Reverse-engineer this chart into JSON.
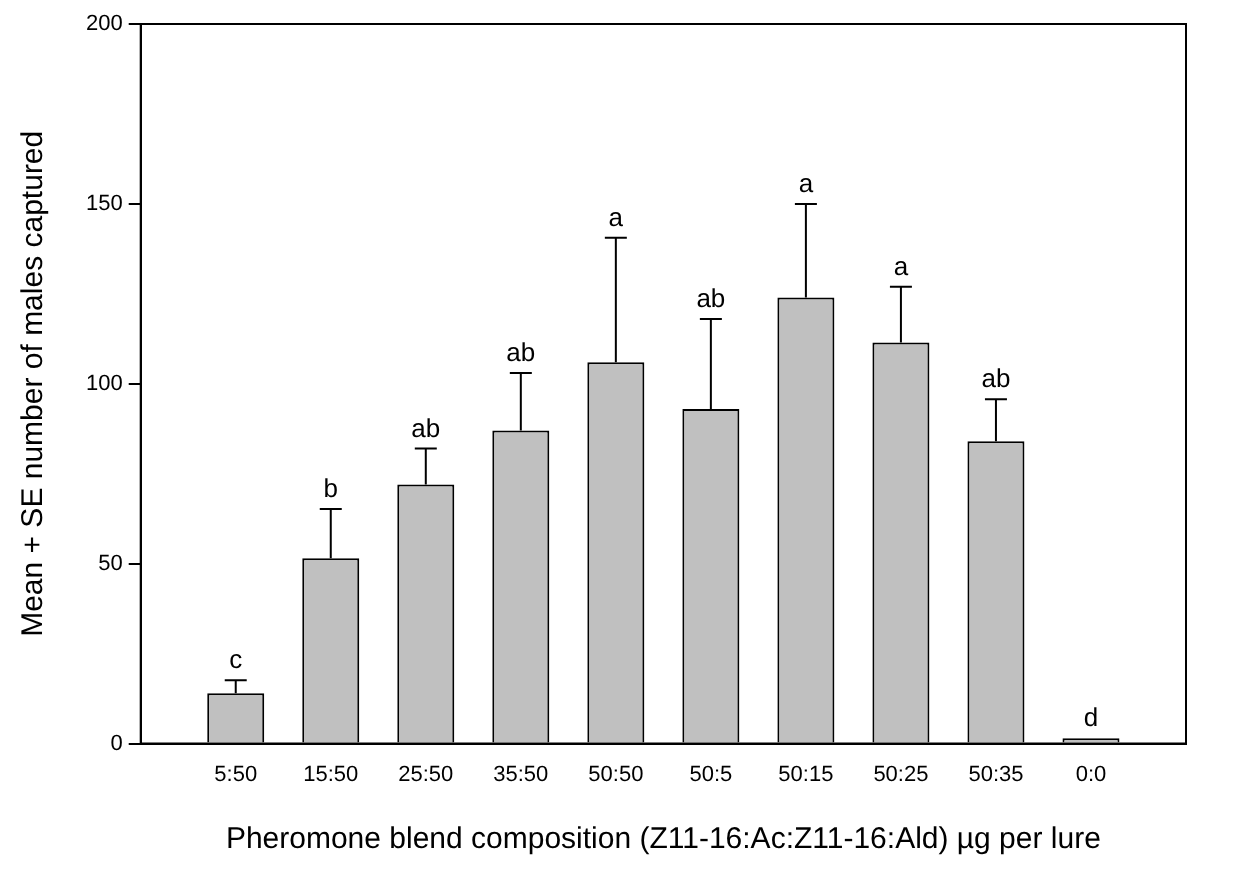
{
  "chart_data": {
    "type": "bar",
    "xlabel": "Pheromone blend composition (Z11-16:Ac:Z11-16:Ald) µg per lure",
    "ylabel": "Mean + SE number of males captured",
    "categories": [
      "5:50",
      "15:50",
      "25:50",
      "35:50",
      "50:50",
      "50:5",
      "50:15",
      "50:25",
      "50:35",
      "0:0"
    ],
    "values": [
      14,
      51.5,
      72,
      87,
      106,
      93,
      124,
      111.5,
      84,
      1.5
    ],
    "errors": [
      [
        14,
        17.6
      ],
      [
        51.5,
        65.2
      ],
      [
        72,
        82
      ],
      [
        87,
        103
      ],
      [
        106,
        140.6
      ],
      [
        93,
        118
      ],
      [
        124,
        150
      ],
      [
        111.5,
        127
      ],
      [
        84,
        95.7
      ],
      null
    ],
    "color": "#c0c0c0",
    "ylim": [
      0,
      200
    ],
    "yticks": [
      0,
      50,
      100,
      150,
      200
    ],
    "grid": false,
    "legend": false,
    "annotations": [
      {
        "text": "c",
        "x": "5:50",
        "y": 17.6
      },
      {
        "text": "b",
        "x": "15:50",
        "y": 65.2
      },
      {
        "text": "ab",
        "x": "25:50",
        "y": 82
      },
      {
        "text": "ab",
        "x": "35:50",
        "y": 103
      },
      {
        "text": "a",
        "x": "50:50",
        "y": 140.6
      },
      {
        "text": "ab",
        "x": "50:5",
        "y": 118
      },
      {
        "text": "a",
        "x": "50:15",
        "y": 150
      },
      {
        "text": "a",
        "x": "50:25",
        "y": 127
      },
      {
        "text": "ab",
        "x": "50:35",
        "y": 95.7
      },
      {
        "text": "d",
        "x": "0:0",
        "y": 1.5
      }
    ]
  }
}
